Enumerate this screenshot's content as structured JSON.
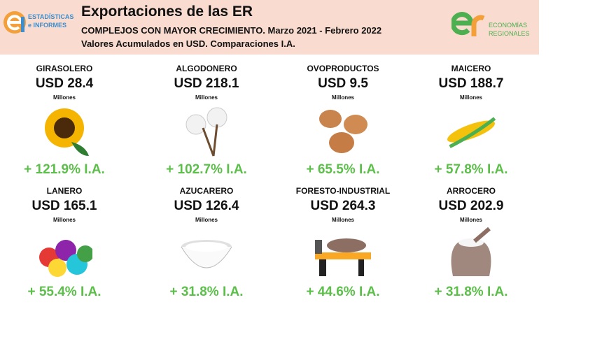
{
  "header": {
    "logo_left": [
      "ESTADÍSTICAS",
      "e INFORMES"
    ],
    "title": "Exportaciones de las ER",
    "subtitle": "COMPLEJOS CON MAYOR CRECIMIENTO. Marzo 2021 - Febrero 2022",
    "subtitle2": "Valores Acumulados en USD. Comparaciones I.A.",
    "logo_right": [
      "ECONOMÍAS",
      "REGIONALES"
    ]
  },
  "items": [
    {
      "name": "GIRASOLERO",
      "amount": "USD 28.4",
      "unit": "Millones",
      "change": "+ 121.9% I.A."
    },
    {
      "name": "ALGODONERO",
      "amount": "USD 218.1",
      "unit": "Millones",
      "change": "+ 102.7% I.A."
    },
    {
      "name": "OVOPRODUCTOS",
      "amount": "USD 9.5",
      "unit": "Millones",
      "change": "+ 65.5% I.A."
    },
    {
      "name": "MAICERO",
      "amount": "USD 188.7",
      "unit": "Millones",
      "change": "+ 57.8% I.A."
    },
    {
      "name": "LANERO",
      "amount": "USD 165.1",
      "unit": "Millones",
      "change": "+ 55.4% I.A."
    },
    {
      "name": "AZUCARERO",
      "amount": "USD 126.4",
      "unit": "Millones",
      "change": "+ 31.8% I.A."
    },
    {
      "name": "FORESTO-INDUSTRIAL",
      "amount": "USD 264.3",
      "unit": "Millones",
      "change": "+ 44.6% I.A."
    },
    {
      "name": "ARROCERO",
      "amount": "USD 202.9",
      "unit": "Millones",
      "change": "+ 31.8% I.A."
    }
  ]
}
